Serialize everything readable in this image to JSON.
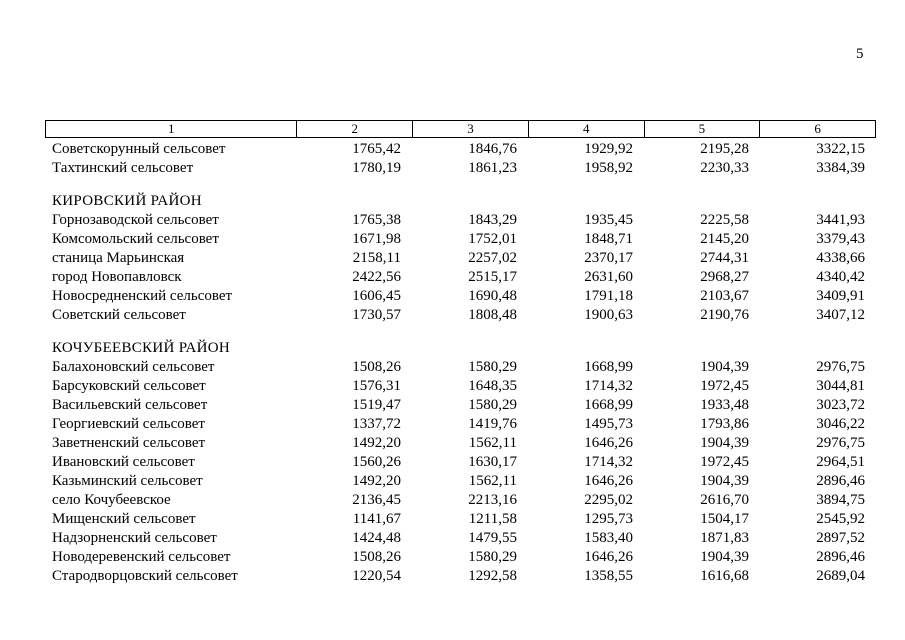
{
  "page": {
    "number": "5"
  },
  "table": {
    "header": [
      "1",
      "2",
      "3",
      "4",
      "5",
      "6"
    ],
    "rows": [
      {
        "type": "data",
        "name": "Советскорунный сельсовет",
        "values": [
          "1765,42",
          "1846,76",
          "1929,92",
          "2195,28",
          "3322,15"
        ]
      },
      {
        "type": "data",
        "name": "Тахтинский сельсовет",
        "values": [
          "1780,19",
          "1861,23",
          "1958,92",
          "2230,33",
          "3384,39"
        ]
      },
      {
        "type": "section",
        "name": "КИРОВСКИЙ РАЙОН",
        "values": []
      },
      {
        "type": "data",
        "name": "Горнозаводской сельсовет",
        "values": [
          "1765,38",
          "1843,29",
          "1935,45",
          "2225,58",
          "3441,93"
        ]
      },
      {
        "type": "data",
        "name": "Комсомольский сельсовет",
        "values": [
          "1671,98",
          "1752,01",
          "1848,71",
          "2145,20",
          "3379,43"
        ]
      },
      {
        "type": "data",
        "name": "станица Марьинская",
        "values": [
          "2158,11",
          "2257,02",
          "2370,17",
          "2744,31",
          "4338,66"
        ]
      },
      {
        "type": "data",
        "name": "город Новопавловск",
        "values": [
          "2422,56",
          "2515,17",
          "2631,60",
          "2968,27",
          "4340,42"
        ]
      },
      {
        "type": "data",
        "name": "Новосредненский сельсовет",
        "values": [
          "1606,45",
          "1690,48",
          "1791,18",
          "2103,67",
          "3409,91"
        ]
      },
      {
        "type": "data",
        "name": "Советский сельсовет",
        "values": [
          "1730,57",
          "1808,48",
          "1900,63",
          "2190,76",
          "3407,12"
        ]
      },
      {
        "type": "section",
        "name": "КОЧУБЕЕВСКИЙ РАЙОН",
        "values": []
      },
      {
        "type": "data",
        "name": "Балахоновский сельсовет",
        "values": [
          "1508,26",
          "1580,29",
          "1668,99",
          "1904,39",
          "2976,75"
        ]
      },
      {
        "type": "data",
        "name": "Барсуковский сельсовет",
        "values": [
          "1576,31",
          "1648,35",
          "1714,32",
          "1972,45",
          "3044,81"
        ]
      },
      {
        "type": "data",
        "name": "Васильевский сельсовет",
        "values": [
          "1519,47",
          "1580,29",
          "1668,99",
          "1933,48",
          "3023,72"
        ]
      },
      {
        "type": "data",
        "name": "Георгиевский сельсовет",
        "values": [
          "1337,72",
          "1419,76",
          "1495,73",
          "1793,86",
          "3046,22"
        ]
      },
      {
        "type": "data",
        "name": "Заветненский сельсовет",
        "values": [
          "1492,20",
          "1562,11",
          "1646,26",
          "1904,39",
          "2976,75"
        ]
      },
      {
        "type": "data",
        "name": "Ивановский сельсовет",
        "values": [
          "1560,26",
          "1630,17",
          "1714,32",
          "1972,45",
          "2964,51"
        ]
      },
      {
        "type": "data",
        "name": "Казьминский сельсовет",
        "values": [
          "1492,20",
          "1562,11",
          "1646,26",
          "1904,39",
          "2896,46"
        ]
      },
      {
        "type": "data",
        "name": "село Кочубеевское",
        "values": [
          "2136,45",
          "2213,16",
          "2295,02",
          "2616,70",
          "3894,75"
        ]
      },
      {
        "type": "data",
        "name": "Мищенский сельсовет",
        "values": [
          "1141,67",
          "1211,58",
          "1295,73",
          "1504,17",
          "2545,92"
        ]
      },
      {
        "type": "data",
        "name": "Надзорненский сельсовет",
        "values": [
          "1424,48",
          "1479,55",
          "1583,40",
          "1871,83",
          "2897,52"
        ]
      },
      {
        "type": "data",
        "name": "Новодеревенский сельсовет",
        "values": [
          "1508,26",
          "1580,29",
          "1646,26",
          "1904,39",
          "2896,46"
        ]
      },
      {
        "type": "data",
        "name": "Стародворцовский сельсовет",
        "values": [
          "1220,54",
          "1292,58",
          "1358,55",
          "1616,68",
          "2689,04"
        ]
      }
    ]
  }
}
